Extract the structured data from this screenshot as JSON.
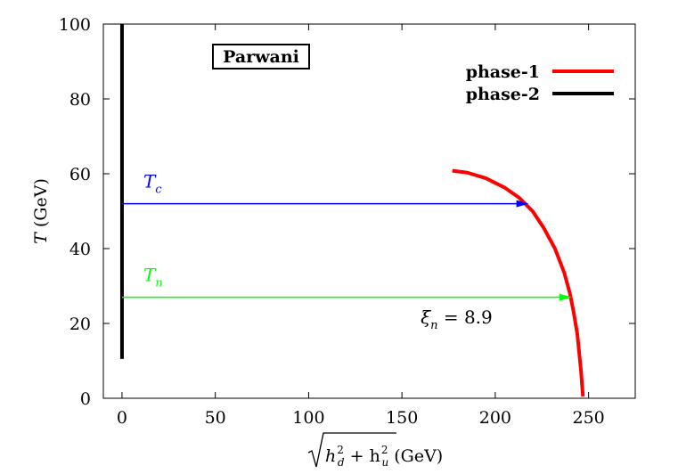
{
  "chart_data": {
    "type": "line",
    "title": "",
    "xlabel_sqrt": "h",
    "xlabel_sub1": "d",
    "xlabel_plus": " + h",
    "xlabel_sub2": "u",
    "xlabel_sup": "2",
    "xlabel_units": " (GeV)",
    "ylabel_var": "T",
    "ylabel_units": " (GeV)",
    "xlim": [
      -10,
      275
    ],
    "ylim": [
      0,
      100
    ],
    "xticks": [
      0,
      50,
      100,
      150,
      200,
      250
    ],
    "yticks": [
      0,
      20,
      40,
      60,
      80,
      100
    ],
    "box_label": "Parwani",
    "legend_position": "top-right",
    "series": [
      {
        "name": "phase-1",
        "color": "#ff0000",
        "x": [
          177,
          185,
          195,
          205,
          213,
          220,
          226,
          232,
          237,
          240,
          242,
          244,
          245,
          246,
          246.5,
          247
        ],
        "y": [
          60.8,
          60.3,
          58.8,
          56.3,
          53.5,
          50.0,
          45.5,
          40.0,
          33.5,
          28.0,
          23.0,
          17.0,
          12.0,
          7.0,
          3.5,
          0.5
        ]
      },
      {
        "name": "phase-2",
        "color": "#000000",
        "x": [
          0,
          0
        ],
        "y": [
          10.5,
          100
        ]
      }
    ],
    "arrows": [
      {
        "label": "T",
        "sub": "c",
        "color": "#0000ff",
        "x_start": 0,
        "x_end": 218,
        "y": 52
      },
      {
        "label": "T",
        "sub": "n",
        "color": "#00ff00",
        "x_start": 0,
        "x_end": 241,
        "y": 27
      }
    ],
    "annotation": {
      "var": "ξ",
      "sub": "n",
      "text": " = 8.9",
      "x": 160,
      "y": 20
    }
  }
}
